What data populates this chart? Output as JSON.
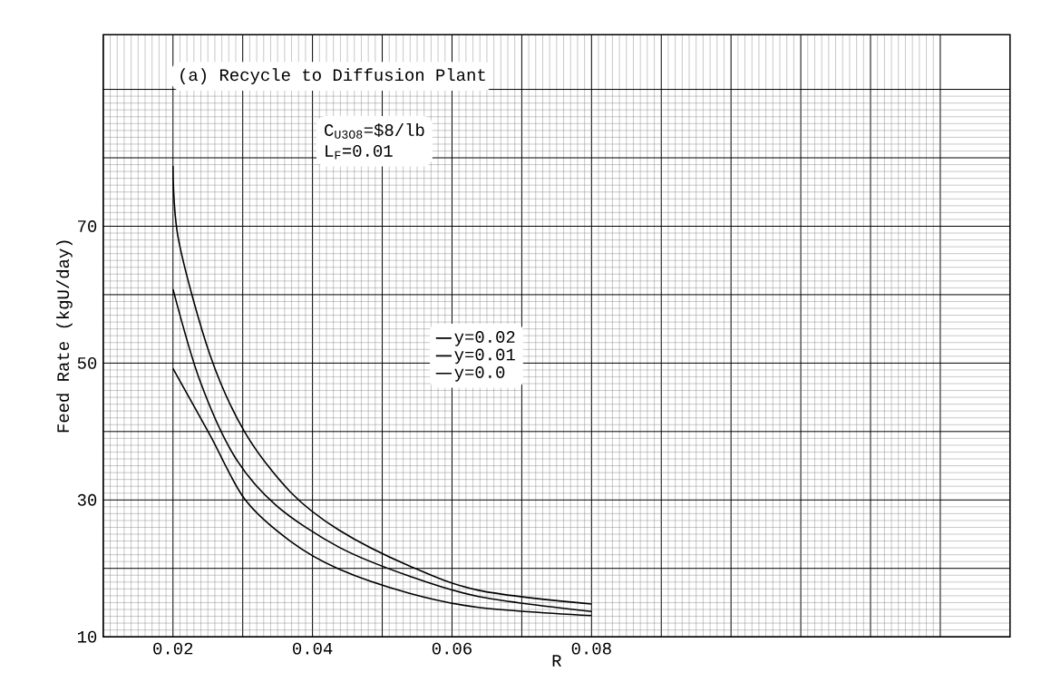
{
  "chart_data": {
    "type": "line",
    "title": "(a) Recycle to Diffusion Plant",
    "xlabel": "R",
    "ylabel": "Feed Rate (kgU/day)",
    "annotations": [
      "C$_{U3O8}$=$8/lb",
      "L$_{F}$=0.01"
    ],
    "xlim": [
      0.01,
      0.14
    ],
    "ylim": [
      10,
      98
    ],
    "xticks": [
      {
        "value": 0.01,
        "label": null
      },
      0.02,
      {
        "value": 0.03,
        "label": null
      },
      0.04,
      {
        "value": 0.05,
        "label": null
      },
      0.06,
      {
        "value": 0.07,
        "label": null
      },
      0.08,
      {
        "value": 0.09,
        "label": null
      },
      {
        "value": 0.1,
        "label": null
      },
      {
        "value": 0.11,
        "label": null
      },
      {
        "value": 0.12,
        "label": null
      },
      {
        "value": 0.13,
        "label": null
      }
    ],
    "yticks": [
      10,
      {
        "value": 20,
        "label": null
      },
      30,
      {
        "value": 40,
        "label": null
      },
      50,
      {
        "value": 60,
        "label": null
      },
      70,
      {
        "value": 80,
        "label": null
      },
      {
        "value": 90,
        "label": null
      }
    ],
    "grid": true,
    "legend": "center",
    "marker": "none",
    "line_style": "solid",
    "series": [
      {
        "name": "y=0.02",
        "color": "#000000",
        "x": [
          0.02,
          0.0208,
          0.0253,
          0.0303,
          0.0368,
          0.0438,
          0.0538,
          0.0638,
          0.08
        ],
        "values": [
          78.8,
          68,
          51.2,
          39.9,
          31.2,
          25.6,
          20.4,
          16.8,
          14.8
        ]
      },
      {
        "name": "y=0.01",
        "color": "#000000",
        "x": [
          0.02,
          0.0238,
          0.0288,
          0.0348,
          0.0438,
          0.0538,
          0.0638,
          0.08
        ],
        "values": [
          60.8,
          47.6,
          36.4,
          29.2,
          23.1,
          18.9,
          15.9,
          13.7
        ]
      },
      {
        "name": "y=0.0",
        "color": "#000000",
        "x": [
          0.02,
          0.0253,
          0.0303,
          0.0368,
          0.0438,
          0.0538,
          0.0638,
          0.08
        ],
        "values": [
          49.2,
          39.5,
          30.1,
          24,
          19.9,
          16.4,
          14.3,
          13.1
        ]
      }
    ]
  }
}
